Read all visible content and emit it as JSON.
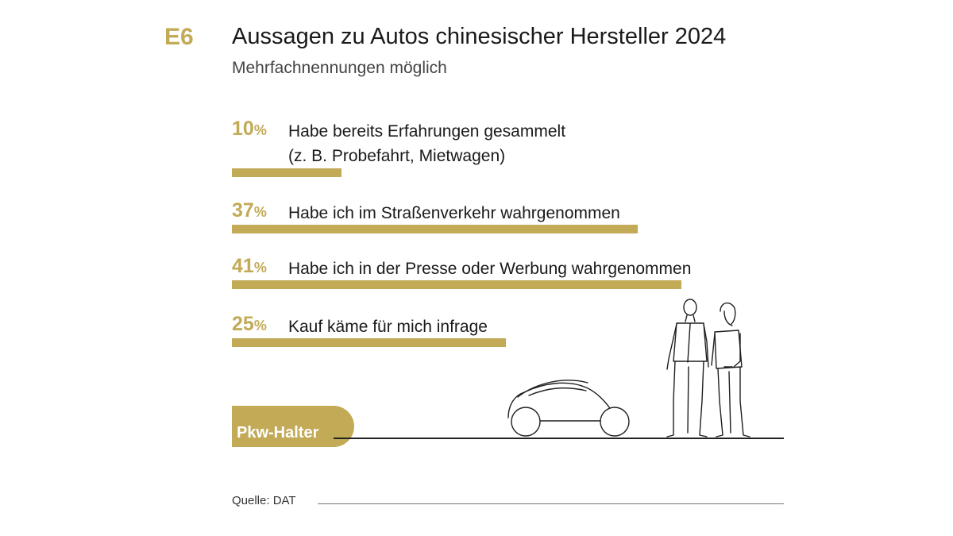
{
  "header": {
    "code": "E6",
    "title": "Aussagen zu Autos chinesischer Hersteller 2024",
    "subtitle": "Mehrfachnennungen möglich"
  },
  "chart_data": {
    "type": "bar",
    "orientation": "horizontal",
    "title": "Aussagen zu Autos chinesischer Hersteller 2024",
    "subtitle": "Mehrfachnennungen möglich",
    "unit": "%",
    "categories": [
      "Habe bereits Erfahrungen gesammelt (z. B. Probefahrt, Mietwagen)",
      "Habe ich im Straßenverkehr wahrgenommen",
      "Habe ich in der Presse oder Werbung wahrgenommen",
      "Kauf käme für mich infrage"
    ],
    "values": [
      10,
      37,
      41,
      25
    ],
    "items": [
      {
        "value": 10,
        "value_text": "10",
        "label_lines": [
          "Habe bereits Erfahrungen gesammelt",
          "(z. B. Probefahrt, Mietwagen)"
        ]
      },
      {
        "value": 37,
        "value_text": "37",
        "label_lines": [
          "Habe ich im Straßenverkehr wahrgenommen"
        ]
      },
      {
        "value": 41,
        "value_text": "41",
        "label_lines": [
          "Habe ich in der Presse oder Werbung wahrgenommen"
        ]
      },
      {
        "value": 25,
        "value_text": "25",
        "label_lines": [
          "Kauf käme für mich infrage"
        ]
      }
    ],
    "percent_sign": "%",
    "bar_color": "#c2aa57",
    "grid": false
  },
  "badge": {
    "label": "Pkw-Halter"
  },
  "source": {
    "text": "Quelle: DAT"
  },
  "colors": {
    "accent": "#c2aa57",
    "text": "#1a1a1a"
  }
}
